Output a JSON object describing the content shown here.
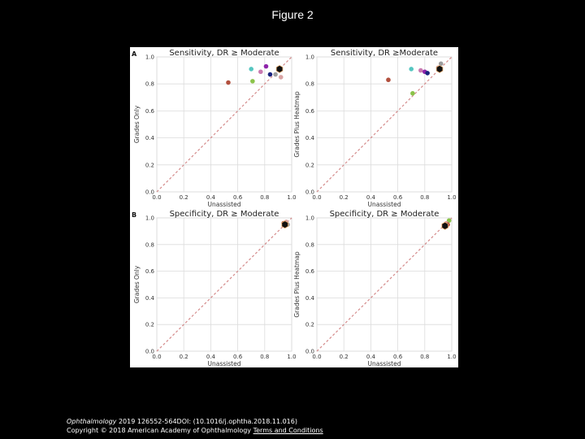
{
  "slide": {
    "title": "Figure 2",
    "caption_journal": "Ophthalmology",
    "caption_rest": " 2019 126552-564DOI: (10.1016/j.ophtha.2018.11.016)",
    "copyright": "Copyright © 2018 American Academy of Ophthalmology ",
    "terms_link": "Terms and Conditions"
  },
  "chart_data": [
    {
      "type": "scatter",
      "panel_letter": "A",
      "title": "Sensitivity, DR ≥ Moderate",
      "xlabel": "Unassisted",
      "ylabel": "Grades Only",
      "xlim": [
        0,
        1
      ],
      "ylim": [
        0,
        1
      ],
      "ticks": [
        "0.0",
        "0.2",
        "0.4",
        "0.6",
        "0.8",
        "1.0"
      ],
      "grid": true,
      "reference_line": "diagonal",
      "points": [
        {
          "x": 0.53,
          "y": 0.81,
          "color": "#b2503e"
        },
        {
          "x": 0.7,
          "y": 0.91,
          "color": "#55c6c0"
        },
        {
          "x": 0.71,
          "y": 0.82,
          "color": "#8bc34a"
        },
        {
          "x": 0.77,
          "y": 0.89,
          "color": "#c97ab0"
        },
        {
          "x": 0.81,
          "y": 0.93,
          "color": "#8e24aa"
        },
        {
          "x": 0.84,
          "y": 0.87,
          "color": "#1a237e"
        },
        {
          "x": 0.88,
          "y": 0.87,
          "color": "#9e9e9e"
        },
        {
          "x": 0.92,
          "y": 0.85,
          "color": "#d9a3a3"
        },
        {
          "x": 0.91,
          "y": 0.91,
          "color": "#111111",
          "marker": "hexagon"
        }
      ]
    },
    {
      "type": "scatter",
      "panel_letter": "",
      "title": "Sensitivity, DR ≥Moderate",
      "xlabel": "Unassisted",
      "ylabel": "Grades Plus Heatmap",
      "xlim": [
        0,
        1
      ],
      "ylim": [
        0,
        1
      ],
      "ticks": [
        "0.0",
        "0.2",
        "0.4",
        "0.6",
        "0.8",
        "1.0"
      ],
      "grid": true,
      "reference_line": "diagonal",
      "points": [
        {
          "x": 0.53,
          "y": 0.83,
          "color": "#b2503e"
        },
        {
          "x": 0.7,
          "y": 0.91,
          "color": "#55c6c0"
        },
        {
          "x": 0.71,
          "y": 0.73,
          "color": "#8bc34a"
        },
        {
          "x": 0.77,
          "y": 0.9,
          "color": "#c97ab0"
        },
        {
          "x": 0.8,
          "y": 0.89,
          "color": "#8e24aa"
        },
        {
          "x": 0.82,
          "y": 0.88,
          "color": "#1a237e"
        },
        {
          "x": 0.92,
          "y": 0.95,
          "color": "#9e9e9e"
        },
        {
          "x": 0.9,
          "y": 0.92,
          "color": "#d9a3a3"
        },
        {
          "x": 0.91,
          "y": 0.91,
          "color": "#111111",
          "marker": "hexagon"
        }
      ]
    },
    {
      "type": "scatter",
      "panel_letter": "B",
      "title": "Specificity, DR ≥ Moderate",
      "xlabel": "Unassisted",
      "ylabel": "Grades Only",
      "xlim": [
        0,
        1
      ],
      "ylim": [
        0,
        1
      ],
      "ticks": [
        "0.0",
        "0.2",
        "0.4",
        "0.6",
        "0.8",
        "1.0"
      ],
      "grid": true,
      "reference_line": "diagonal",
      "points": [
        {
          "x": 0.94,
          "y": 0.96,
          "color": "#b2503e"
        },
        {
          "x": 0.96,
          "y": 0.97,
          "color": "#d9a3a3"
        },
        {
          "x": 0.95,
          "y": 0.94,
          "color": "#c97ab0"
        },
        {
          "x": 0.97,
          "y": 0.95,
          "color": "#9e9e9e"
        },
        {
          "x": 0.95,
          "y": 0.95,
          "color": "#111111",
          "marker": "hexagon"
        }
      ]
    },
    {
      "type": "scatter",
      "panel_letter": "",
      "title": "Specificity, DR ≥ Moderate",
      "xlabel": "Unassisted",
      "ylabel": "Grades Plus Heatmap",
      "xlim": [
        0,
        1
      ],
      "ylim": [
        0,
        1
      ],
      "ticks": [
        "0.0",
        "0.2",
        "0.4",
        "0.6",
        "0.8",
        "1.0"
      ],
      "grid": true,
      "reference_line": "diagonal",
      "points": [
        {
          "x": 0.98,
          "y": 0.98,
          "color": "#8bc34a"
        },
        {
          "x": 0.96,
          "y": 0.96,
          "color": "#d9a3a3"
        },
        {
          "x": 0.95,
          "y": 0.95,
          "color": "#c97ab0"
        },
        {
          "x": 0.97,
          "y": 0.95,
          "color": "#b2503e"
        },
        {
          "x": 0.95,
          "y": 0.94,
          "color": "#111111",
          "marker": "hexagon"
        }
      ]
    }
  ]
}
